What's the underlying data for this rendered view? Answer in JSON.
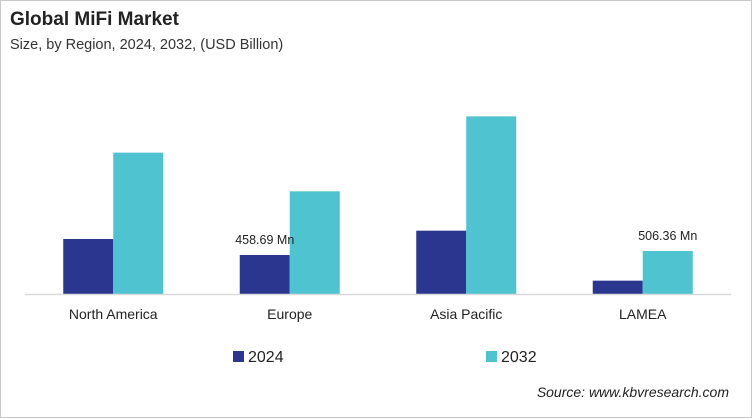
{
  "chart_data": {
    "type": "bar",
    "title": "Global MiFi Market",
    "subtitle": "Size, by Region, 2024, 2032, (USD Billion)",
    "categories": [
      "North America",
      "Europe",
      "Asia Pacific",
      "LAMEA"
    ],
    "series": [
      {
        "name": "2024",
        "color": "#2b368f",
        "values": [
          647,
          458.69,
          745,
          157
        ]
      },
      {
        "name": "2032",
        "color": "#4fc4d0",
        "values": [
          1663,
          1208,
          2090,
          506.36
        ]
      }
    ],
    "data_labels": [
      {
        "category": "Europe",
        "series": "2024",
        "text": "458.69  Mn"
      },
      {
        "category": "LAMEA",
        "series": "2032",
        "text": "506.36  Mn"
      }
    ],
    "ylim": [
      0,
      2400
    ],
    "grid": false,
    "legend": "bottom",
    "source": "Source: www.kbvresearch.com"
  }
}
